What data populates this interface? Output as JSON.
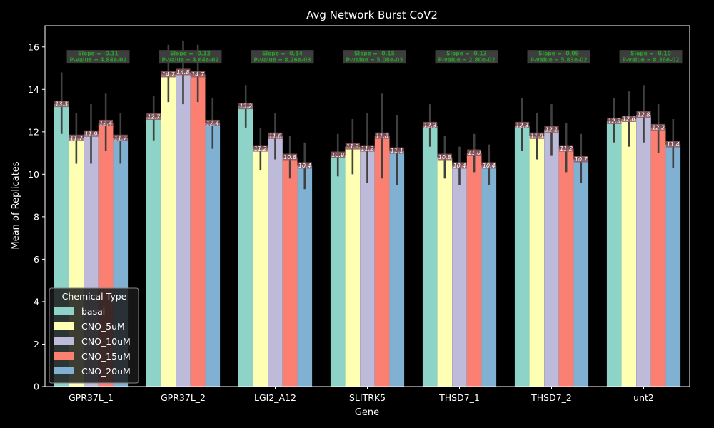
{
  "chart_data": {
    "type": "bar",
    "title": "Avg Network Burst CoV2",
    "xlabel": "Gene",
    "ylabel": "Mean of Replicates",
    "ylim": [
      0,
      17
    ],
    "yticks": [
      0,
      2,
      4,
      6,
      8,
      10,
      12,
      14,
      16
    ],
    "categories": [
      "GPR37L_1",
      "GPR37L_2",
      "LGI2_A12",
      "SLITRK5",
      "THSD7_1",
      "THSD7_2",
      "unt2"
    ],
    "legend": {
      "title": "Chemical Type",
      "position": "lower-left"
    },
    "series": [
      {
        "name": "basal",
        "color": "#8dd3c7",
        "values": [
          13.3,
          12.7,
          13.2,
          10.9,
          12.3,
          12.3,
          12.5
        ],
        "err_low": [
          11.9,
          11.6,
          12.2,
          9.9,
          11.3,
          11.1,
          11.5
        ],
        "err_high": [
          14.8,
          13.7,
          14.2,
          11.9,
          13.3,
          13.6,
          13.6
        ]
      },
      {
        "name": "CNO_5uM",
        "color": "#ffffb3",
        "values": [
          11.7,
          14.7,
          11.2,
          11.3,
          10.8,
          11.8,
          12.6
        ],
        "err_low": [
          10.5,
          13.4,
          10.2,
          10.0,
          9.8,
          10.7,
          11.3
        ],
        "err_high": [
          12.9,
          16.1,
          12.2,
          12.6,
          11.8,
          12.9,
          13.9
        ]
      },
      {
        "name": "CNO_10uM",
        "color": "#bebada",
        "values": [
          11.9,
          14.8,
          11.8,
          11.2,
          10.4,
          12.1,
          12.8
        ],
        "err_low": [
          10.5,
          13.3,
          10.7,
          9.6,
          9.5,
          10.9,
          11.5
        ],
        "err_high": [
          13.3,
          16.3,
          12.9,
          12.9,
          11.3,
          13.3,
          14.2
        ]
      },
      {
        "name": "CNO_15uM",
        "color": "#fb8072",
        "values": [
          12.4,
          14.7,
          10.8,
          11.8,
          11.0,
          11.2,
          12.2
        ],
        "err_low": [
          11.1,
          13.4,
          9.8,
          9.8,
          10.1,
          10.1,
          11.0
        ],
        "err_high": [
          13.8,
          16.1,
          11.8,
          13.8,
          11.9,
          12.4,
          13.3
        ]
      },
      {
        "name": "CNO_20uM",
        "color": "#80b1d3",
        "values": [
          11.7,
          12.4,
          10.4,
          11.1,
          10.4,
          10.7,
          11.4
        ],
        "err_low": [
          10.5,
          11.2,
          9.3,
          9.5,
          9.5,
          9.6,
          10.3
        ],
        "err_high": [
          12.9,
          13.6,
          11.5,
          12.8,
          11.4,
          11.9,
          12.6
        ]
      }
    ],
    "value_labels": [
      [
        "13.3",
        "12.7",
        "13.2",
        "10.9",
        "12.3",
        "12.3",
        "12.5"
      ],
      [
        "11.7",
        "14.7",
        "11.2",
        "11.3",
        "10.8",
        "11.8",
        "12.6"
      ],
      [
        "11.9",
        "14.8",
        "11.8",
        "11.2",
        "10.4",
        "12.1",
        "12.8"
      ],
      [
        "12.4",
        "14.7",
        "10.8",
        "11.8",
        "11.0",
        "11.2",
        "12.2"
      ],
      [
        "11.7",
        "12.4",
        "10.4",
        "11.1",
        "10.4",
        "10.7",
        "11.4"
      ]
    ],
    "annotations": [
      {
        "slope": "Slope = -0.11",
        "pvalue": "P-value = 4.84e-02"
      },
      {
        "slope": "Slope = -0.12",
        "pvalue": "P-value = 4.64e-02"
      },
      {
        "slope": "Slope = -0.14",
        "pvalue": "P-value = 8.26e-03"
      },
      {
        "slope": "Slope = -0.15",
        "pvalue": "P-value = 5.08e-03"
      },
      {
        "slope": "Slope = -0.13",
        "pvalue": "P-value = 2.80e-02"
      },
      {
        "slope": "Slope = -0.09",
        "pvalue": "P-value = 5.83e-02"
      },
      {
        "slope": "Slope = -0.10",
        "pvalue": "P-value = 8.36e-02"
      }
    ]
  }
}
